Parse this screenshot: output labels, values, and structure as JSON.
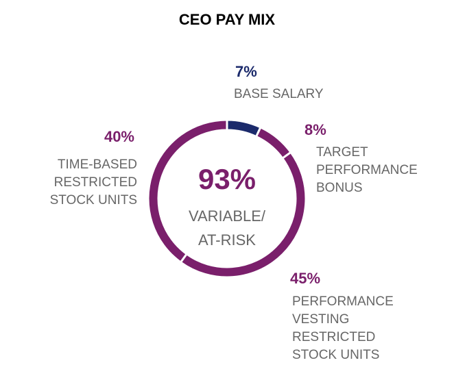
{
  "chart_data": {
    "type": "donut",
    "title": "CEO PAY MIX",
    "categories": [
      "BASE SALARY",
      "TARGET\nPERFORMANCE\nBONUS",
      "PERFORMANCE\nVESTING\nRESTRICTED\nSTOCK UNITS",
      "TIME-BASED\nRESTRICTED\nSTOCK UNITS"
    ],
    "values": [
      7,
      8,
      45,
      40
    ],
    "value_labels": [
      "7%",
      "8%",
      "45%",
      "40%"
    ],
    "colors": [
      "#1b2a6b",
      "#7a1f6b",
      "#7a1f6b",
      "#7a1f6b"
    ],
    "annotations": [
      "93%",
      "VARIABLE/\nAT-RISK"
    ]
  }
}
